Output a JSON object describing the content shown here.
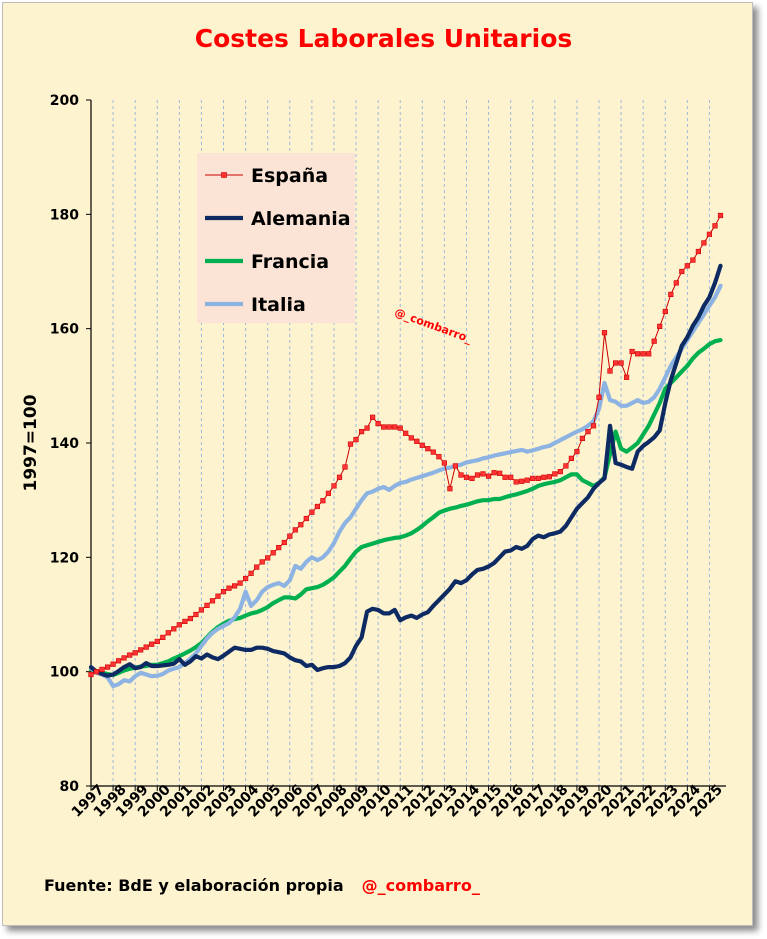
{
  "title": "Costes Laborales Unitarios",
  "watermark": "@_combarro_",
  "footer": {
    "source": "Fuente: BdE y elaboración propia",
    "handle": "@_combarro_"
  },
  "chart_data": {
    "type": "line",
    "ylabel": "1997=100",
    "xlabel": "",
    "ylim": [
      80,
      200
    ],
    "yticks": [
      80,
      100,
      120,
      140,
      160,
      180,
      200
    ],
    "xlim": [
      1997,
      2025.75
    ],
    "xticks": [
      "1997",
      "1998",
      "1999",
      "2000",
      "2001",
      "2002",
      "2003",
      "2004",
      "2005",
      "2006",
      "2007",
      "2008",
      "2009",
      "2010",
      "2011",
      "2012",
      "2013",
      "2014",
      "2015",
      "2016",
      "2017",
      "2018",
      "2019",
      "2020",
      "2021",
      "2022",
      "2023",
      "2024",
      "2025"
    ],
    "grid": "vertical dashed lines at each year",
    "legend_position": "upper-left inside plot",
    "frequency": "quarterly",
    "x_start": "1997",
    "series": [
      {
        "name": "España",
        "color": "#cc0000",
        "style": "thin line with square markers",
        "values": [
          99.5,
          100.0,
          100.4,
          100.8,
          101.3,
          101.9,
          102.4,
          102.9,
          103.3,
          103.8,
          104.3,
          104.8,
          105.3,
          106.0,
          106.8,
          107.5,
          108.2,
          108.8,
          109.3,
          110.0,
          110.8,
          111.6,
          112.4,
          113.2,
          114.0,
          114.6,
          115.0,
          115.5,
          116.3,
          117.2,
          118.3,
          119.2,
          119.9,
          120.8,
          121.7,
          122.6,
          123.7,
          124.8,
          125.7,
          126.8,
          127.9,
          128.9,
          129.9,
          131.2,
          132.5,
          134.0,
          135.8,
          139.8,
          140.6,
          142.0,
          142.6,
          144.5,
          143.4,
          142.8,
          142.8,
          142.8,
          142.6,
          141.7,
          140.9,
          140.3,
          139.6,
          139.0,
          138.4,
          137.6,
          136.5,
          132.0,
          136.0,
          134.4,
          134.0,
          133.8,
          134.4,
          134.6,
          134.2,
          134.8,
          134.7,
          134.0,
          134.0,
          133.2,
          133.3,
          133.5,
          133.8,
          133.8,
          134.0,
          134.1,
          134.6,
          135.0,
          136.0,
          137.3,
          138.5,
          140.8,
          142.0,
          143.0,
          148.0,
          159.3,
          152.6,
          154.0,
          154.0,
          151.5,
          156.0,
          155.6,
          155.6,
          155.6,
          157.8,
          160.4,
          163.0,
          166.0,
          168.0,
          170.0,
          171.0,
          172.0,
          173.5,
          175.0,
          176.5,
          178.0,
          179.8
        ]
      },
      {
        "name": "Alemania",
        "color": "#0d2a63",
        "style": "thick line",
        "values": [
          100.8,
          100.0,
          99.6,
          99.3,
          99.5,
          100.1,
          100.8,
          101.3,
          100.6,
          100.8,
          101.5,
          101.0,
          101.0,
          101.1,
          101.2,
          101.4,
          102.2,
          101.2,
          101.8,
          102.7,
          102.3,
          103.0,
          102.5,
          102.2,
          102.8,
          103.5,
          104.2,
          104.0,
          103.8,
          103.8,
          104.2,
          104.2,
          104.0,
          103.6,
          103.4,
          103.2,
          102.5,
          102.0,
          101.8,
          101.0,
          101.2,
          100.3,
          100.6,
          100.8,
          100.8,
          101.0,
          101.5,
          102.5,
          104.5,
          106.0,
          110.5,
          111.0,
          110.8,
          110.2,
          110.2,
          110.8,
          109.0,
          109.5,
          109.8,
          109.4,
          110.0,
          110.4,
          111.5,
          112.5,
          113.5,
          114.5,
          115.8,
          115.5,
          116.0,
          117.0,
          117.8,
          118.0,
          118.4,
          119.0,
          120.0,
          121.0,
          121.2,
          121.8,
          121.5,
          122.0,
          123.2,
          123.8,
          123.5,
          124.0,
          124.2,
          124.5,
          125.5,
          127.0,
          128.5,
          129.5,
          130.5,
          132.0,
          133.0,
          133.8,
          143.0,
          136.5,
          136.2,
          135.8,
          135.5,
          138.5,
          139.5,
          140.2,
          141.0,
          142.2,
          147.0,
          151.0,
          154.0,
          157.0,
          158.5,
          160.5,
          162.0,
          164.0,
          165.5,
          168.0,
          171.0
        ]
      },
      {
        "name": "Francia",
        "color": "#00b050",
        "style": "thick line",
        "values": [
          100.4,
          100.1,
          99.8,
          99.6,
          99.4,
          99.8,
          100.2,
          100.5,
          100.7,
          100.9,
          101.0,
          101.2,
          101.2,
          101.5,
          101.8,
          102.3,
          102.7,
          103.2,
          103.7,
          104.3,
          105.0,
          106.0,
          107.0,
          107.8,
          108.4,
          108.9,
          109.2,
          109.4,
          109.8,
          110.2,
          110.4,
          110.8,
          111.3,
          112.0,
          112.5,
          113.0,
          113.0,
          112.8,
          113.5,
          114.4,
          114.6,
          114.8,
          115.2,
          115.8,
          116.5,
          117.5,
          118.5,
          119.8,
          121.0,
          121.8,
          122.1,
          122.4,
          122.7,
          123.0,
          123.2,
          123.4,
          123.5,
          123.8,
          124.2,
          124.8,
          125.5,
          126.3,
          127.0,
          127.8,
          128.2,
          128.5,
          128.7,
          129.0,
          129.2,
          129.5,
          129.8,
          130.0,
          130.0,
          130.2,
          130.2,
          130.5,
          130.8,
          131.0,
          131.3,
          131.6,
          132.0,
          132.5,
          132.8,
          133.0,
          133.2,
          133.5,
          134.0,
          134.5,
          134.5,
          133.5,
          133.0,
          132.5,
          133.0,
          134.0,
          138.0,
          142.0,
          139.0,
          138.5,
          139.2,
          140.0,
          141.5,
          143.0,
          145.0,
          147.0,
          149.5,
          150.5,
          151.5,
          152.5,
          153.5,
          154.8,
          155.8,
          156.5,
          157.3,
          157.8,
          158.0
        ]
      },
      {
        "name": "Italia",
        "color": "#8db3e2",
        "style": "thick line",
        "values": [
          100.6,
          99.8,
          99.5,
          99.0,
          97.5,
          97.8,
          98.5,
          98.3,
          99.2,
          99.8,
          99.5,
          99.2,
          99.3,
          99.6,
          100.2,
          100.5,
          100.8,
          101.5,
          102.3,
          103.2,
          104.5,
          105.8,
          106.8,
          107.5,
          108.0,
          108.5,
          109.5,
          111.0,
          114.0,
          111.5,
          112.5,
          114.0,
          114.8,
          115.2,
          115.5,
          115.0,
          116.0,
          118.5,
          118.0,
          119.2,
          120.0,
          119.5,
          120.0,
          121.0,
          122.5,
          124.5,
          126.0,
          127.0,
          128.5,
          130.0,
          131.2,
          131.5,
          132.0,
          132.3,
          131.8,
          132.5,
          133.0,
          133.2,
          133.6,
          133.9,
          134.2,
          134.5,
          134.8,
          135.2,
          135.5,
          135.7,
          136.0,
          136.2,
          136.6,
          136.8,
          137.0,
          137.3,
          137.5,
          137.8,
          138.0,
          138.2,
          138.4,
          138.6,
          138.8,
          138.5,
          138.7,
          139.0,
          139.3,
          139.5,
          140.0,
          140.5,
          141.0,
          141.5,
          142.0,
          142.4,
          143.0,
          143.8,
          146.0,
          150.5,
          147.5,
          147.2,
          146.5,
          146.5,
          147.0,
          147.5,
          147.0,
          147.2,
          148.0,
          149.5,
          151.5,
          153.5,
          155.0,
          156.5,
          158.0,
          159.5,
          161.0,
          162.5,
          164.0,
          165.5,
          167.5
        ]
      }
    ]
  }
}
